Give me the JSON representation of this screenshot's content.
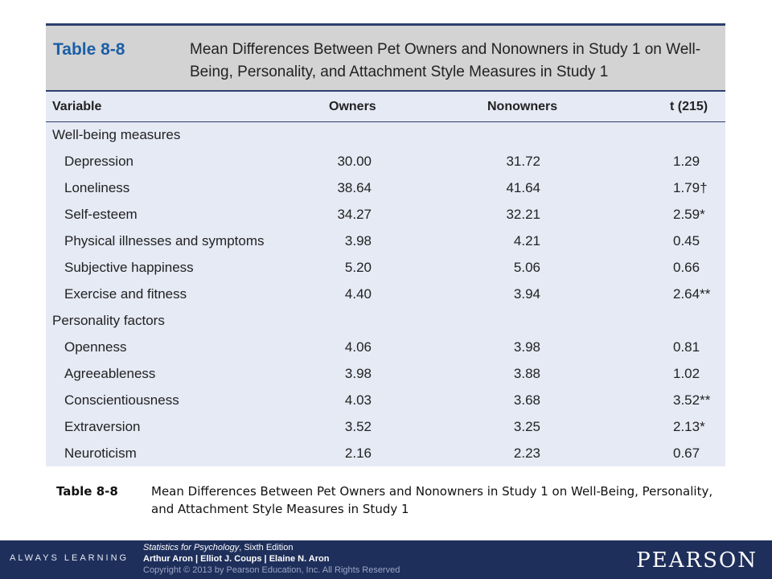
{
  "table": {
    "label": "Table 8-8",
    "title": "Mean Differences Between Pet Owners and Nonowners in Study 1 on Well-Being, Personality, and Attachment Style Measures in Study 1",
    "headers": {
      "variable": "Variable",
      "owners": "Owners",
      "nonowners": "Nonowners",
      "t": "t (215)"
    },
    "rows": [
      {
        "variable": "Well-being measures",
        "owners": "",
        "nonowners": "",
        "t": ""
      },
      {
        "variable": "Depression",
        "owners": "30.00",
        "nonowners": "31.72",
        "t": "1.29"
      },
      {
        "variable": "Loneliness",
        "owners": "38.64",
        "nonowners": "41.64",
        "t": "1.79†"
      },
      {
        "variable": "Self-esteem",
        "owners": "34.27",
        "nonowners": "32.21",
        "t": "2.59*"
      },
      {
        "variable": "Physical illnesses and symptoms",
        "owners": "3.98",
        "nonowners": "4.21",
        "t": "0.45"
      },
      {
        "variable": "Subjective happiness",
        "owners": "5.20",
        "nonowners": "5.06",
        "t": "0.66"
      },
      {
        "variable": "Exercise and fitness",
        "owners": "4.40",
        "nonowners": "3.94",
        "t": "2.64**"
      },
      {
        "variable": "Personality factors",
        "owners": "",
        "nonowners": "",
        "t": ""
      },
      {
        "variable": "Openness",
        "owners": "4.06",
        "nonowners": "3.98",
        "t": "0.81"
      },
      {
        "variable": "Agreeableness",
        "owners": "3.98",
        "nonowners": "3.88",
        "t": "1.02"
      },
      {
        "variable": "Conscientiousness",
        "owners": "4.03",
        "nonowners": "3.68",
        "t": "3.52**"
      },
      {
        "variable": "Extraversion",
        "owners": "3.52",
        "nonowners": "3.25",
        "t": "2.13*"
      },
      {
        "variable": "Neuroticism",
        "owners": "2.16",
        "nonowners": "2.23",
        "t": "0.67"
      }
    ]
  },
  "caption": {
    "label": "Table 8-8",
    "text": "Mean Differences Between Pet Owners and Nonowners in Study 1 on Well-Being, Personality, and Attachment Style Measures in Study 1"
  },
  "footer": {
    "tagline": "ALWAYS LEARNING",
    "book_title": "Statistics for Psychology",
    "edition": ", Sixth Edition",
    "authors": "Arthur Aron | Elliot J. Coups | Elaine N. Aron",
    "copyright": "Copyright © 2013 by Pearson Education, Inc. All Rights Reserved",
    "logo": "PEARSON"
  },
  "colors": {
    "header_band": "#d3d3d3",
    "table_bg": "#e6eaf5",
    "label_blue": "#1b5fa6",
    "footer_bg": "#1f2f5b"
  }
}
